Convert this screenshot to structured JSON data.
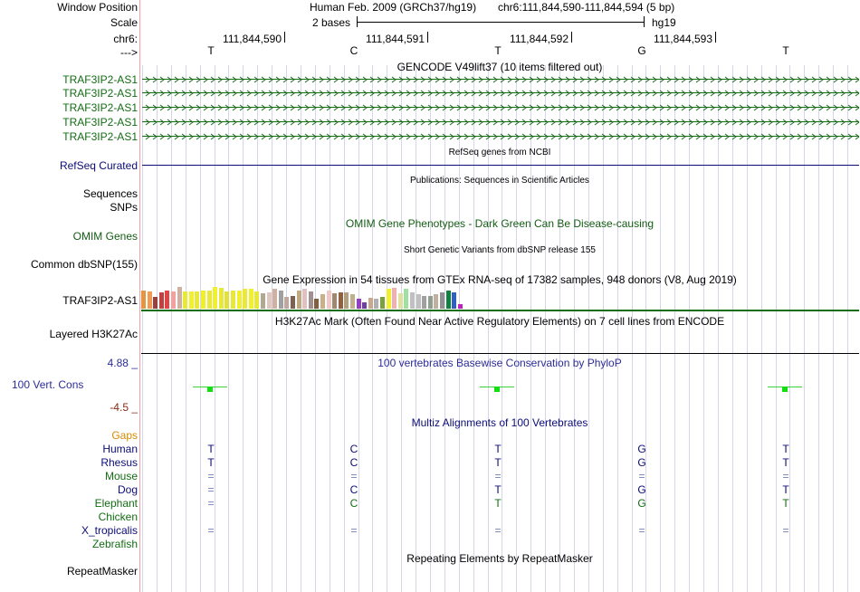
{
  "header": {
    "window_position_label": "Window Position",
    "window_position_text": "Human Feb. 2009 (GRCh37/hg19)",
    "window_position_coords": "chr6:111,844,590-111,844,594 (5 bp)",
    "scale_label": "Scale",
    "scale_value": "2 bases",
    "scale_assembly": "hg19",
    "chrom_label": "chr6:",
    "strand_label": "--->",
    "positions": [
      "111,844,590",
      "111,844,591",
      "111,844,592",
      "111,844,593"
    ],
    "bases": [
      "T",
      "C",
      "T",
      "G",
      "T"
    ]
  },
  "tracks": {
    "gencode": {
      "title": "GENCODE V49lift37 (10 items filtered out)",
      "items": [
        "TRAF3IP2-AS1",
        "TRAF3IP2-AS1",
        "TRAF3IP2-AS1",
        "TRAF3IP2-AS1",
        "TRAF3IP2-AS1"
      ],
      "color": "#136d13"
    },
    "refseq": {
      "title": "RefSeq genes from NCBI",
      "label": "RefSeq Curated",
      "color": "#0c0c78"
    },
    "publications": {
      "title": "Publications: Sequences in Scientific Articles",
      "label_sequences": "Sequences",
      "label_snps": "SNPs"
    },
    "omim": {
      "title": "OMIM Gene Phenotypes - Dark Green Can Be Disease-causing",
      "label": "OMIM Genes",
      "color": "#145d14"
    },
    "dbsnp": {
      "title": "Short Genetic Variants from dbSNP release 155",
      "label": "Common dbSNP(155)"
    },
    "gtex": {
      "title": "Gene Expression in 54 tissues from GTEx RNA-seq of 17382 samples, 948 donors (V8, Aug 2019)",
      "label": "TRAF3IP2-AS1",
      "levels": [
        0.85,
        0.8,
        0.55,
        0.75,
        0.85,
        0.8,
        1.0,
        0.8,
        0.8,
        0.8,
        0.85,
        0.85,
        1.0,
        0.95,
        0.8,
        0.85,
        0.85,
        0.9,
        0.9,
        0.8,
        0.7,
        0.75,
        0.9,
        0.85,
        0.55,
        0.6,
        0.85,
        0.9,
        0.8,
        0.45,
        0.65,
        0.85,
        0.7,
        0.75,
        0.75,
        0.65,
        0.45,
        0.3,
        0.5,
        0.45,
        0.55,
        0.9,
        0.95,
        0.7,
        0.9,
        0.75,
        0.65,
        0.6,
        0.6,
        0.65,
        0.75,
        0.85,
        0.75,
        0.2
      ],
      "colors": [
        "#e49444",
        "#f29a54",
        "#9a4040",
        "#c24040",
        "#e04444",
        "#f2a0a0",
        "#d0b0a0",
        "#e8e838",
        "#f0f030",
        "#e8e838",
        "#f0f028",
        "#e8e840",
        "#f0f030",
        "#e8e838",
        "#e0e040",
        "#e8e838",
        "#f0f030",
        "#e8e840",
        "#f0f030",
        "#e8e838",
        "#b0a890",
        "#e0c8c0",
        "#d0b0a0",
        "#a0a0a0",
        "#c0a8a0",
        "#806050",
        "#c0a880",
        "#e0c0c0",
        "#a09090",
        "#806040",
        "#c8b088",
        "#f0c8c8",
        "#a08870",
        "#906040",
        "#b0a080",
        "#c0b090",
        "#9040c0",
        "#7040a0",
        "#c8a890",
        "#b0b0b0",
        "#7aa040",
        "#f0f030",
        "#f0b0b0",
        "#e0e0a0",
        "#a0e0a0",
        "#c0c0c0",
        "#c0c0c0",
        "#a0a0a0",
        "#90a090",
        "#c0b0a0",
        "#909090",
        "#108040",
        "#3060c0",
        "#c020c0"
      ]
    },
    "h3k27ac": {
      "title": "H3K27Ac Mark (Often Found Near Active Regulatory Elements) on 7 cell lines from ENCODE",
      "label": "Layered H3K27Ac"
    },
    "phylop": {
      "title": "100 vertebrates Basewise Conservation by PhyloP",
      "label": "100 Vert. Cons",
      "max_label": "4.88 _",
      "min_label": "-4.5 _",
      "color_title": "#2c2c9a",
      "color_min": "#8b2a14"
    },
    "multiz": {
      "title": "Multiz Alignments of 100 Vertebrates",
      "species": [
        {
          "name": "Gaps",
          "color": "#d88a00",
          "bases": [
            "",
            "",
            "",
            "",
            ""
          ]
        },
        {
          "name": "Human",
          "color": "#0c0c78",
          "bases": [
            "T",
            "C",
            "T",
            "G",
            "T"
          ]
        },
        {
          "name": "Rhesus",
          "color": "#0c0c78",
          "bases": [
            "T",
            "C",
            "T",
            "G",
            "T"
          ]
        },
        {
          "name": "Mouse",
          "color": "#136d13",
          "bases": [
            "=",
            "=",
            "=",
            "=",
            "="
          ]
        },
        {
          "name": "Dog",
          "color": "#0c0c78",
          "bases": [
            "=",
            "C",
            "T",
            "G",
            "T"
          ]
        },
        {
          "name": "Elephant",
          "color": "#136d13",
          "bases": [
            "=",
            "C",
            "T",
            "G",
            "T"
          ]
        },
        {
          "name": "Chicken",
          "color": "#136d13",
          "bases": [
            "",
            "",
            "",
            "",
            ""
          ]
        },
        {
          "name": "X_tropicalis",
          "color": "#0c0c78",
          "bases": [
            "=",
            "=",
            "=",
            "=",
            "="
          ]
        },
        {
          "name": "Zebrafish",
          "color": "#136d13",
          "bases": [
            "",
            "",
            "",
            "",
            ""
          ]
        }
      ]
    },
    "repeatmasker": {
      "title": "Repeating Elements by RepeatMasker",
      "label": "RepeatMasker"
    }
  }
}
